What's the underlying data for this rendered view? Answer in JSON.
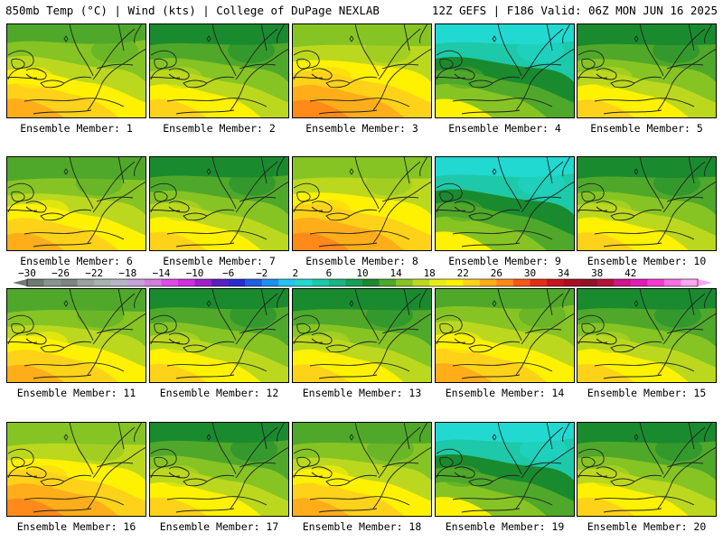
{
  "header": {
    "left": "850mb Temp (°C) | Wind (kts) | College of DuPage NEXLAB",
    "right": "12Z GEFS | F186 Valid: 06Z MON JUN 16 2025"
  },
  "colorbar": {
    "ticks": [
      "−30",
      "−26",
      "−22",
      "−18",
      "−14",
      "−10",
      "−6",
      "−2",
      "2",
      "6",
      "10",
      "14",
      "18",
      "22",
      "26",
      "30",
      "34",
      "38",
      "42"
    ],
    "colors": [
      "#6e7a72",
      "#8a948e",
      "#7c857f",
      "#9aa39c",
      "#a9b3ad",
      "#b7b6c9",
      "#c6a2d9",
      "#d37fe0",
      "#e04be6",
      "#cf2fdf",
      "#a020c8",
      "#5a1fc0",
      "#2a2ad0",
      "#1f5fe0",
      "#1e90ee",
      "#25c4f0",
      "#21d9d0",
      "#1dc9a8",
      "#19b582",
      "#189e55",
      "#1a8a2e",
      "#4fa82a",
      "#86c424",
      "#bcd81e",
      "#e6ee1a",
      "#fff200",
      "#ffd21a",
      "#ffae1a",
      "#ff8a1a",
      "#f55a18",
      "#e32e18",
      "#c8141e",
      "#a80f22",
      "#8e1426",
      "#b3123a",
      "#d0148a",
      "#e41ab8",
      "#f33ccf",
      "#fb6fe0",
      "#ffa6ee"
    ]
  },
  "members": [
    {
      "label": "Ensemble Member: 1",
      "scheme": "warm"
    },
    {
      "label": "Ensemble Member: 2",
      "scheme": "mixed"
    },
    {
      "label": "Ensemble Member: 3",
      "scheme": "hot"
    },
    {
      "label": "Ensemble Member: 4",
      "scheme": "cool"
    },
    {
      "label": "Ensemble Member: 5",
      "scheme": "mixed"
    },
    {
      "label": "Ensemble Member: 6",
      "scheme": "warm"
    },
    {
      "label": "Ensemble Member: 7",
      "scheme": "mixed"
    },
    {
      "label": "Ensemble Member: 8",
      "scheme": "hot"
    },
    {
      "label": "Ensemble Member: 9",
      "scheme": "cool"
    },
    {
      "label": "Ensemble Member: 10",
      "scheme": "mixed"
    },
    {
      "label": "Ensemble Member: 11",
      "scheme": "warm"
    },
    {
      "label": "Ensemble Member: 12",
      "scheme": "mixed"
    },
    {
      "label": "Ensemble Member: 13",
      "scheme": "mixed"
    },
    {
      "label": "Ensemble Member: 14",
      "scheme": "warm"
    },
    {
      "label": "Ensemble Member: 15",
      "scheme": "mixed"
    },
    {
      "label": "Ensemble Member: 16",
      "scheme": "hot"
    },
    {
      "label": "Ensemble Member: 17",
      "scheme": "mixed"
    },
    {
      "label": "Ensemble Member: 18",
      "scheme": "warm"
    },
    {
      "label": "Ensemble Member: 19",
      "scheme": "cool"
    },
    {
      "label": "Ensemble Member: 20",
      "scheme": "mixed"
    }
  ],
  "palette": {
    "darkgreen": "#1a8a2e",
    "green": "#4fa82a",
    "lightgreen": "#86c424",
    "yellowgreen": "#bcd81e",
    "yellow": "#fff200",
    "gold": "#ffd21a",
    "orange": "#ffae1a",
    "darkorange": "#ff8a1a",
    "teal": "#1dc9a8",
    "aqua": "#21d9d0",
    "line": "#222222"
  }
}
